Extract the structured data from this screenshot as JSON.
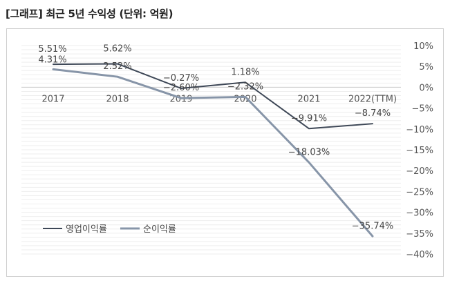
{
  "title": "[그래프] 최근 5년 수익성 (단위: 억원)",
  "chart_data": {
    "type": "line",
    "categories": [
      "2017",
      "2018",
      "2019",
      "2020",
      "2021",
      "2022(TTM)"
    ],
    "series": [
      {
        "name": "영업이익률",
        "values": [
          5.51,
          5.62,
          -0.27,
          1.18,
          -9.91,
          -8.74
        ],
        "labels": [
          "5.51%",
          "5.62%",
          "−0.27%",
          "1.18%",
          "−9.91%",
          "−8.74%"
        ],
        "color": "#3e4857"
      },
      {
        "name": "순이익률",
        "values": [
          4.31,
          2.52,
          -2.6,
          -2.32,
          -18.03,
          -35.74
        ],
        "labels": [
          "4.31%",
          "2.52%",
          "−2.60%",
          "−2.32%",
          "−18.03%",
          "−35.74%"
        ],
        "color": "#8795a8"
      }
    ],
    "yticks": [
      10,
      5,
      0,
      -5,
      -10,
      -15,
      -20,
      -25,
      -30,
      -35,
      -40
    ],
    "ytick_labels": [
      "10%",
      "5%",
      "0%",
      "−5%",
      "−10%",
      "−15%",
      "−20%",
      "−25%",
      "−30%",
      "−35%",
      "−40%"
    ],
    "ylim": [
      -40,
      10
    ],
    "xlabel": "",
    "ylabel": "",
    "grid": true,
    "legend_position": "bottom-left"
  }
}
